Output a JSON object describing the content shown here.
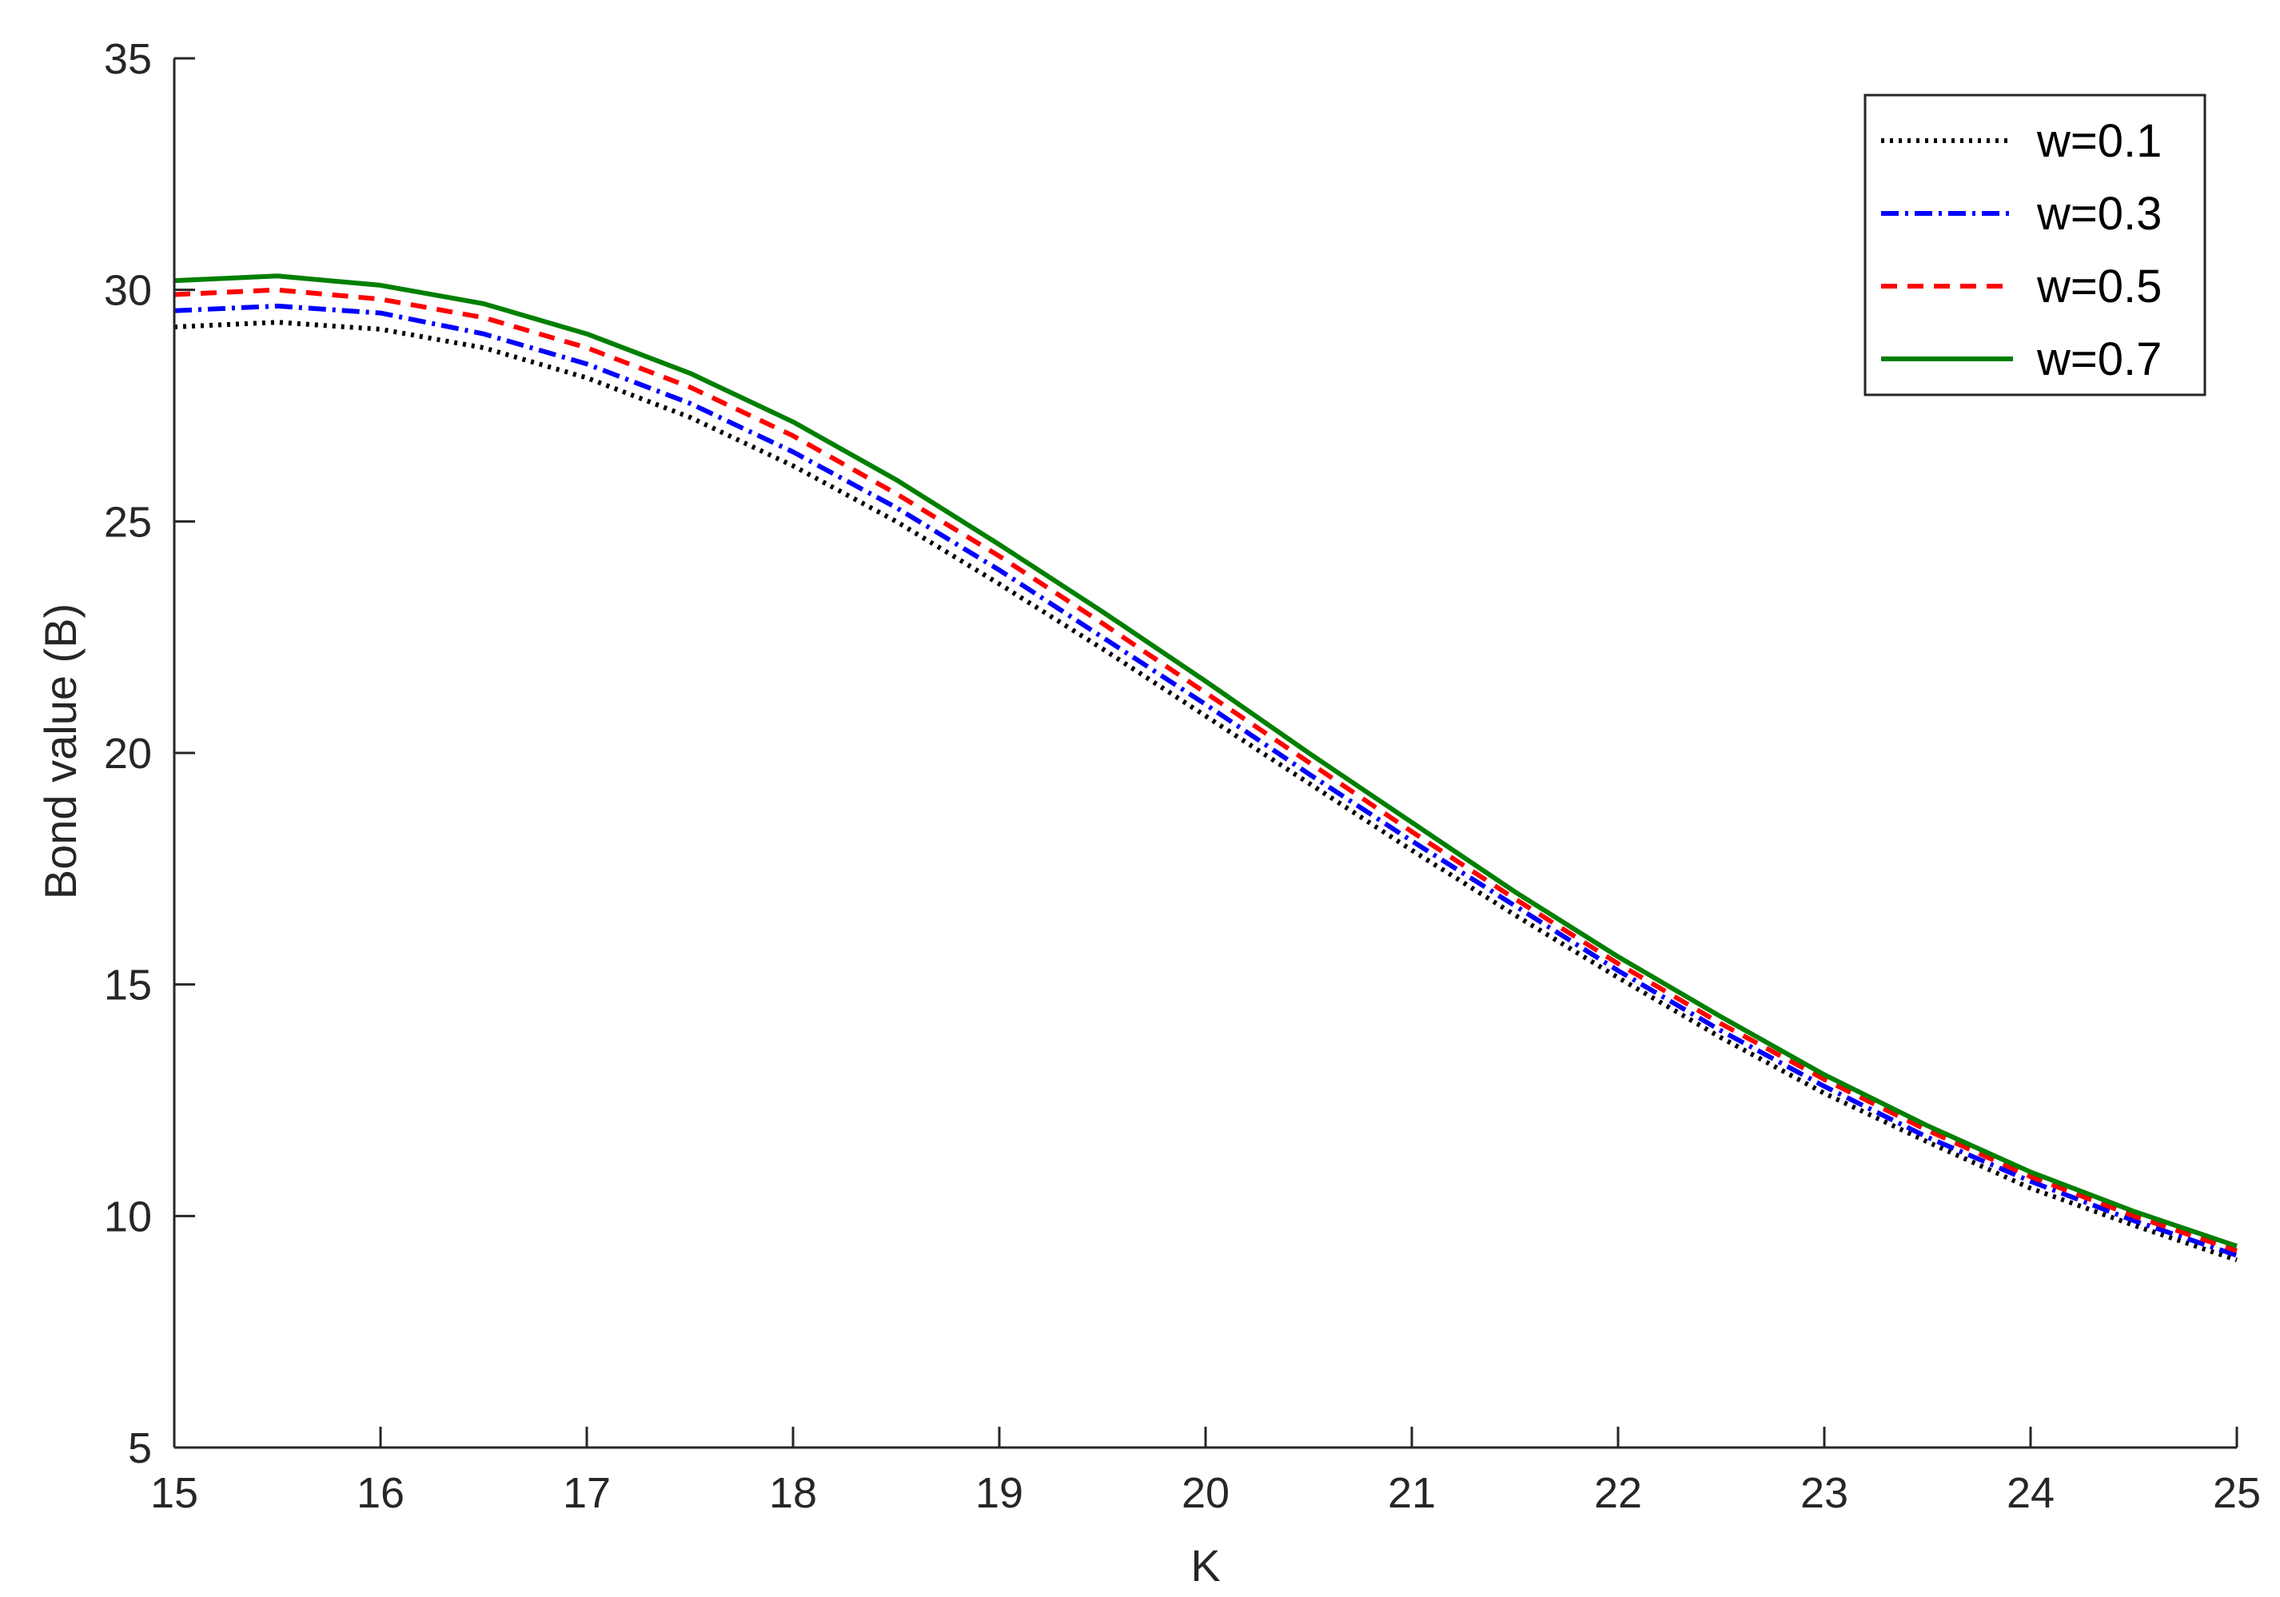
{
  "chart_data": {
    "type": "line",
    "xlabel": "K",
    "ylabel": "Bond value (B)",
    "xlim": [
      15,
      25
    ],
    "ylim": [
      5,
      35
    ],
    "xticks": [
      15,
      16,
      17,
      18,
      19,
      20,
      21,
      22,
      23,
      24,
      25
    ],
    "yticks": [
      5,
      10,
      15,
      20,
      25,
      30,
      35
    ],
    "grid": false,
    "legend_position": "top-right",
    "x": [
      15,
      15.5,
      16,
      16.5,
      17,
      17.5,
      18,
      18.5,
      19,
      19.5,
      20,
      20.5,
      21,
      21.5,
      22,
      22.5,
      23,
      23.5,
      24,
      24.5,
      25
    ],
    "series": [
      {
        "name": "w=0.1",
        "color": "#000000",
        "style": "dotted",
        "values": [
          29.2,
          29.3,
          29.15,
          28.75,
          28.1,
          27.25,
          26.2,
          25.0,
          23.65,
          22.25,
          20.8,
          19.35,
          17.9,
          16.5,
          15.15,
          13.85,
          12.65,
          11.6,
          10.6,
          9.8,
          9.05
        ]
      },
      {
        "name": "w=0.3",
        "color": "#0000ff",
        "style": "dashdot",
        "values": [
          29.55,
          29.65,
          29.5,
          29.05,
          28.4,
          27.55,
          26.5,
          25.3,
          23.95,
          22.5,
          21.05,
          19.55,
          18.1,
          16.7,
          15.3,
          14.0,
          12.8,
          11.7,
          10.75,
          9.9,
          9.15
        ]
      },
      {
        "name": "w=0.5",
        "color": "#ff0000",
        "style": "dashed",
        "values": [
          29.9,
          30.0,
          29.8,
          29.4,
          28.75,
          27.9,
          26.85,
          25.6,
          24.25,
          22.8,
          21.3,
          19.8,
          18.3,
          16.85,
          15.45,
          14.15,
          12.95,
          11.85,
          10.85,
          10.0,
          9.25
        ]
      },
      {
        "name": "w=0.7",
        "color": "#007f00",
        "style": "solid",
        "values": [
          30.2,
          30.3,
          30.1,
          29.7,
          29.05,
          28.2,
          27.15,
          25.9,
          24.5,
          23.05,
          21.55,
          20.0,
          18.5,
          17.0,
          15.6,
          14.3,
          13.05,
          11.95,
          10.95,
          10.1,
          9.35
        ]
      }
    ]
  }
}
